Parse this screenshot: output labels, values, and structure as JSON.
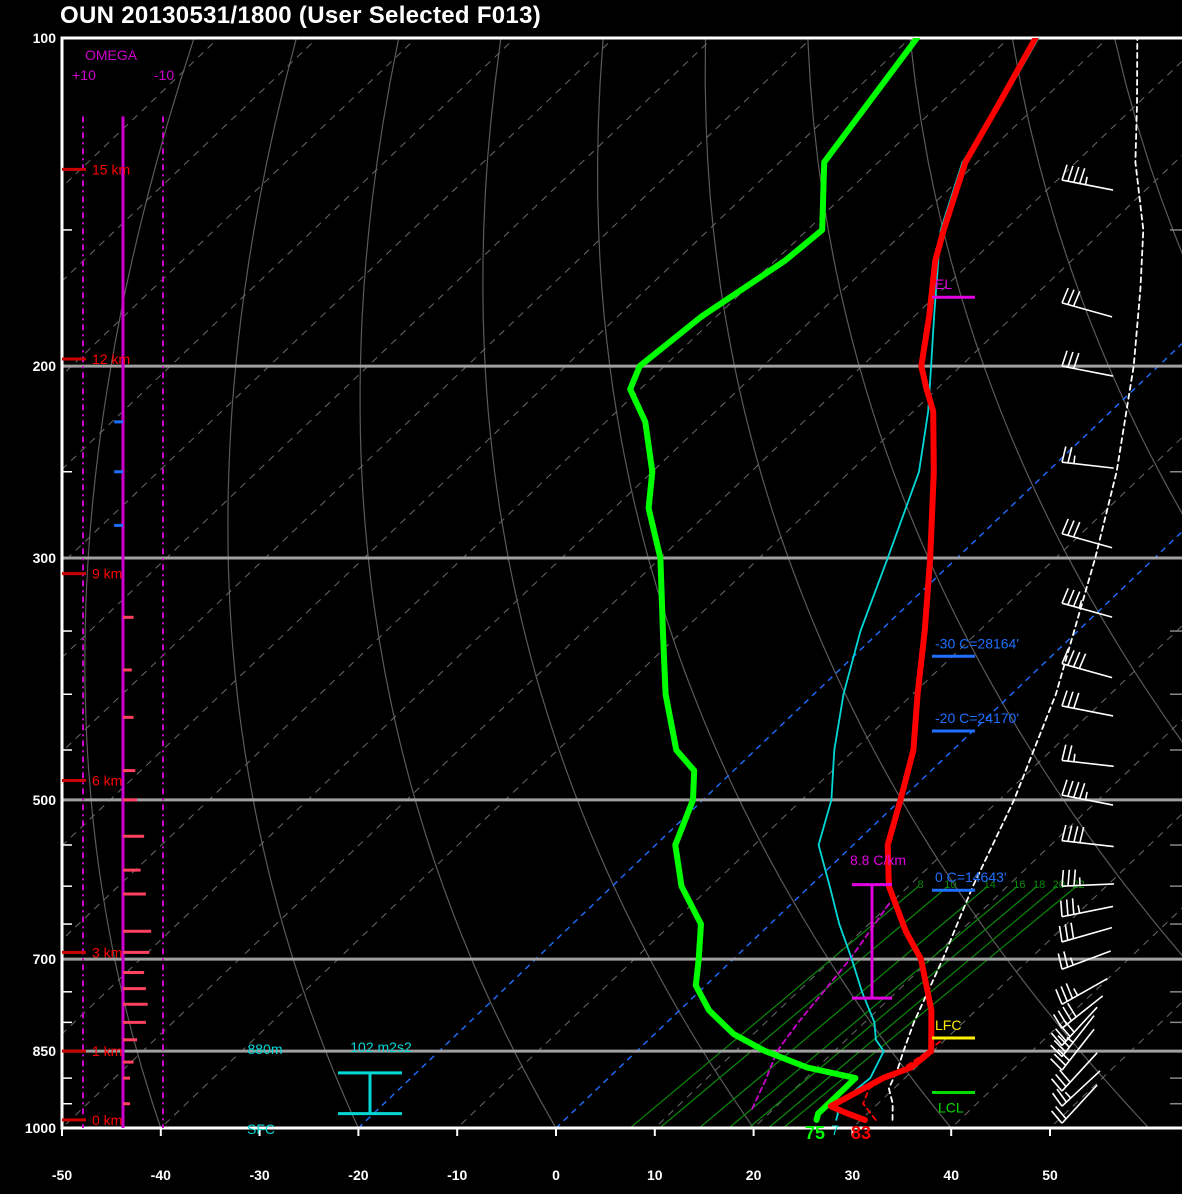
{
  "header": {
    "title": "OUN   20130531/1800  (User Selected F013)"
  },
  "colors": {
    "background": "#000000",
    "temperature": "#ff0000",
    "dewpoint": "#00ff00",
    "virtual_temp": "#00d8d8",
    "parcel": "#ffffff",
    "omega": "#cc00cc",
    "height": "#ff0000",
    "freezing": "#1f6fff",
    "lcl": "#00dd00",
    "lfc": "#ffee00",
    "el": "#e000e0"
  },
  "chart_data": {
    "type": "line",
    "subtype": "skew-T log-P sounding",
    "x_ticks": [
      -50,
      -40,
      -30,
      -20,
      -10,
      0,
      10,
      20,
      30,
      40,
      50
    ],
    "p_ticks": [
      100,
      200,
      300,
      500,
      700,
      850,
      1000
    ],
    "p_minor_ticks": [
      150,
      250,
      350,
      400,
      450,
      550,
      600,
      650,
      750,
      800,
      900,
      950
    ],
    "xlim": [
      -50,
      50
    ],
    "plim": [
      1000,
      100
    ],
    "series": [
      {
        "key": "temperature",
        "color": "#ff0000",
        "points": [
          [
            983,
            30.4
          ],
          [
            970,
            28
          ],
          [
            955,
            25.5
          ],
          [
            900,
            27.8
          ],
          [
            880,
            29.5
          ],
          [
            850,
            29.8
          ],
          [
            820,
            28
          ],
          [
            780,
            25.5
          ],
          [
            700,
            19
          ],
          [
            660,
            14.5
          ],
          [
            600,
            8
          ],
          [
            550,
            3.5
          ],
          [
            500,
            0
          ],
          [
            450,
            -4
          ],
          [
            400,
            -9.5
          ],
          [
            350,
            -15.5
          ],
          [
            300,
            -22.7
          ],
          [
            250,
            -31.5
          ],
          [
            220,
            -38
          ],
          [
            210,
            -41
          ],
          [
            200,
            -44
          ],
          [
            180,
            -48.5
          ],
          [
            160,
            -53.8
          ],
          [
            150,
            -56.2
          ],
          [
            130,
            -61.2
          ],
          [
            115,
            -64
          ],
          [
            100,
            -67.3
          ]
        ]
      },
      {
        "key": "dewpoint",
        "color": "#00ff00",
        "points": [
          [
            983,
            25.5
          ],
          [
            970,
            25
          ],
          [
            955,
            25
          ],
          [
            900,
            25
          ],
          [
            880,
            19
          ],
          [
            850,
            13
          ],
          [
            820,
            8
          ],
          [
            780,
            3
          ],
          [
            740,
            -1
          ],
          [
            700,
            -3.5
          ],
          [
            650,
            -7
          ],
          [
            600,
            -13
          ],
          [
            550,
            -18
          ],
          [
            500,
            -21
          ],
          [
            470,
            -24
          ],
          [
            450,
            -28
          ],
          [
            400,
            -35
          ],
          [
            350,
            -42
          ],
          [
            300,
            -50
          ],
          [
            270,
            -56.5
          ],
          [
            250,
            -60
          ],
          [
            225,
            -66
          ],
          [
            210,
            -71
          ],
          [
            200,
            -72.5
          ],
          [
            180,
            -71.5
          ],
          [
            160,
            -69
          ],
          [
            150,
            -68.5
          ],
          [
            130,
            -75.5
          ],
          [
            100,
            -79.3
          ]
        ]
      },
      {
        "key": "virtual_temp",
        "color": "#00d8d8",
        "points": [
          [
            983,
            27.5
          ],
          [
            970,
            27
          ],
          [
            955,
            26
          ],
          [
            900,
            26.5
          ],
          [
            850,
            25
          ],
          [
            830,
            23
          ],
          [
            800,
            21
          ],
          [
            750,
            16.5
          ],
          [
            700,
            12
          ],
          [
            650,
            7
          ],
          [
            600,
            2
          ],
          [
            550,
            -3.5
          ],
          [
            500,
            -7
          ],
          [
            450,
            -12
          ],
          [
            400,
            -17
          ],
          [
            350,
            -22
          ],
          [
            300,
            -27
          ],
          [
            250,
            -33
          ],
          [
            220,
            -38.5
          ],
          [
            200,
            -43
          ],
          [
            180,
            -48
          ],
          [
            160,
            -53.5
          ],
          [
            150,
            -56.5
          ],
          [
            130,
            -61.5
          ],
          [
            115,
            -63.8
          ],
          [
            100,
            -67
          ]
        ]
      },
      {
        "key": "parcel",
        "color": "#ffffff",
        "dashed": true,
        "points": [
          [
            983,
            33.2
          ],
          [
            950,
            31.5
          ],
          [
            920,
            29.5
          ],
          [
            880,
            28.2
          ],
          [
            850,
            27
          ],
          [
            800,
            25
          ],
          [
            700,
            21.2
          ],
          [
            600,
            16.5
          ],
          [
            500,
            11.5
          ],
          [
            400,
            4.5
          ],
          [
            300,
            -6
          ],
          [
            250,
            -13
          ],
          [
            200,
            -22.5
          ],
          [
            170,
            -30
          ],
          [
            150,
            -36
          ],
          [
            130,
            -44
          ],
          [
            115,
            -50
          ],
          [
            100,
            -57
          ]
        ]
      },
      {
        "key": "parcel_lower",
        "color": "#ff0000",
        "dashed": true,
        "points": [
          [
            983,
            31.5
          ],
          [
            950,
            28.5
          ],
          [
            920,
            27.5
          ],
          [
            880,
            28.8
          ],
          [
            850,
            29.5
          ],
          [
            830,
            29.7
          ]
        ]
      },
      {
        "key": "wetbulb",
        "color": "#cc00cc",
        "dashed": true,
        "points": [
          [
            960,
            17.8
          ],
          [
            900,
            16
          ],
          [
            850,
            14.2
          ],
          [
            800,
            13.3
          ],
          [
            750,
            12.6
          ],
          [
            700,
            11.8
          ],
          [
            650,
            10.6
          ],
          [
            620,
            9.8
          ]
        ]
      }
    ],
    "labels": {
      "omega_title": "OMEGA",
      "omega_plus": "+10",
      "omega_minus": "-10",
      "heights": [
        "15 km",
        "12 km",
        "9 km",
        "6 km",
        "3 km",
        "1 km",
        "0 km"
      ],
      "height_pressures": [
        132,
        197,
        310,
        480,
        690,
        850,
        983
      ],
      "el": "EL",
      "el_pressure": 170,
      "lfc": "LFC",
      "lfc_pressure": 813,
      "lcl": "LCL",
      "lcl_pressure": 920,
      "m30": "-30 C=28164'",
      "m30_pressure": 363,
      "m20": "-20 C=24170'",
      "m20_pressure": 425,
      "zero": "0 C=14643'",
      "zero_pressure": 595,
      "lapse": "8.8 C/km",
      "lapse_top": 598,
      "lapse_bottom": 760,
      "srh": "102 m2s2",
      "eff_top": "880m",
      "sfc": "SFC",
      "eff_top_pressure": 850,
      "sfc_pressure": 1000,
      "bracket_top": 890,
      "bracket_bottom": 970,
      "temp_f": "83",
      "dew_f": "75",
      "vt_f": "7",
      "mixing_ratio": [
        "8",
        "10",
        "14",
        "16",
        "18",
        "20",
        "22"
      ]
    },
    "mixing_ratio_lines": [
      {
        "label": "8",
        "top": 11,
        "bottom": 7.5
      },
      {
        "label": "10",
        "top": 14,
        "bottom": 10.5
      },
      {
        "label": "14",
        "top": 18,
        "bottom": 14.5
      },
      {
        "label": "16",
        "top": 21,
        "bottom": 17.5
      },
      {
        "label": "18",
        "top": 23,
        "bottom": 19.5
      },
      {
        "label": "20",
        "top": 25,
        "bottom": 21.5
      },
      {
        "label": "22",
        "top": 27,
        "bottom": 23
      }
    ],
    "winds": [
      {
        "p": 135,
        "speed": 45,
        "dir": 260
      },
      {
        "p": 175,
        "speed": 30,
        "dir": 265
      },
      {
        "p": 200,
        "speed": 30,
        "dir": 260
      },
      {
        "p": 245,
        "speed": 25,
        "dir": 255
      },
      {
        "p": 285,
        "speed": 30,
        "dir": 265
      },
      {
        "p": 330,
        "speed": 35,
        "dir": 265
      },
      {
        "p": 375,
        "speed": 40,
        "dir": 265
      },
      {
        "p": 410,
        "speed": 30,
        "dir": 260
      },
      {
        "p": 460,
        "speed": 25,
        "dir": 255
      },
      {
        "p": 495,
        "speed": 45,
        "dir": 260
      },
      {
        "p": 545,
        "speed": 40,
        "dir": 255
      },
      {
        "p": 600,
        "speed": 35,
        "dir": 245
      },
      {
        "p": 640,
        "speed": 35,
        "dir": 235
      },
      {
        "p": 675,
        "speed": 30,
        "dir": 230
      },
      {
        "p": 715,
        "speed": 25,
        "dir": 225
      },
      {
        "p": 770,
        "speed": 35,
        "dir": 215
      },
      {
        "p": 810,
        "speed": 40,
        "dir": 205
      },
      {
        "p": 840,
        "speed": 40,
        "dir": 195
      },
      {
        "p": 860,
        "speed": 35,
        "dir": 190
      },
      {
        "p": 885,
        "speed": 30,
        "dir": 190
      },
      {
        "p": 925,
        "speed": 30,
        "dir": 195
      },
      {
        "p": 955,
        "speed": 25,
        "dir": 200
      },
      {
        "p": 990,
        "speed": 20,
        "dir": 195
      }
    ],
    "omega": [
      {
        "p": 225,
        "v": -1
      },
      {
        "p": 250,
        "v": -1
      },
      {
        "p": 280,
        "v": -1
      },
      {
        "p": 340,
        "v": 1.2
      },
      {
        "p": 380,
        "v": 1
      },
      {
        "p": 420,
        "v": 1.2
      },
      {
        "p": 470,
        "v": 1.4
      },
      {
        "p": 500,
        "v": 1.6
      },
      {
        "p": 540,
        "v": 2.4
      },
      {
        "p": 580,
        "v": 2
      },
      {
        "p": 610,
        "v": 2.6
      },
      {
        "p": 660,
        "v": 3.2
      },
      {
        "p": 690,
        "v": 3
      },
      {
        "p": 720,
        "v": 2.4
      },
      {
        "p": 745,
        "v": 2.6
      },
      {
        "p": 770,
        "v": 2.8
      },
      {
        "p": 800,
        "v": 2.6
      },
      {
        "p": 830,
        "v": 1.6
      },
      {
        "p": 870,
        "v": 1.2
      },
      {
        "p": 900,
        "v": 0.8
      },
      {
        "p": 950,
        "v": 0.8
      }
    ]
  }
}
